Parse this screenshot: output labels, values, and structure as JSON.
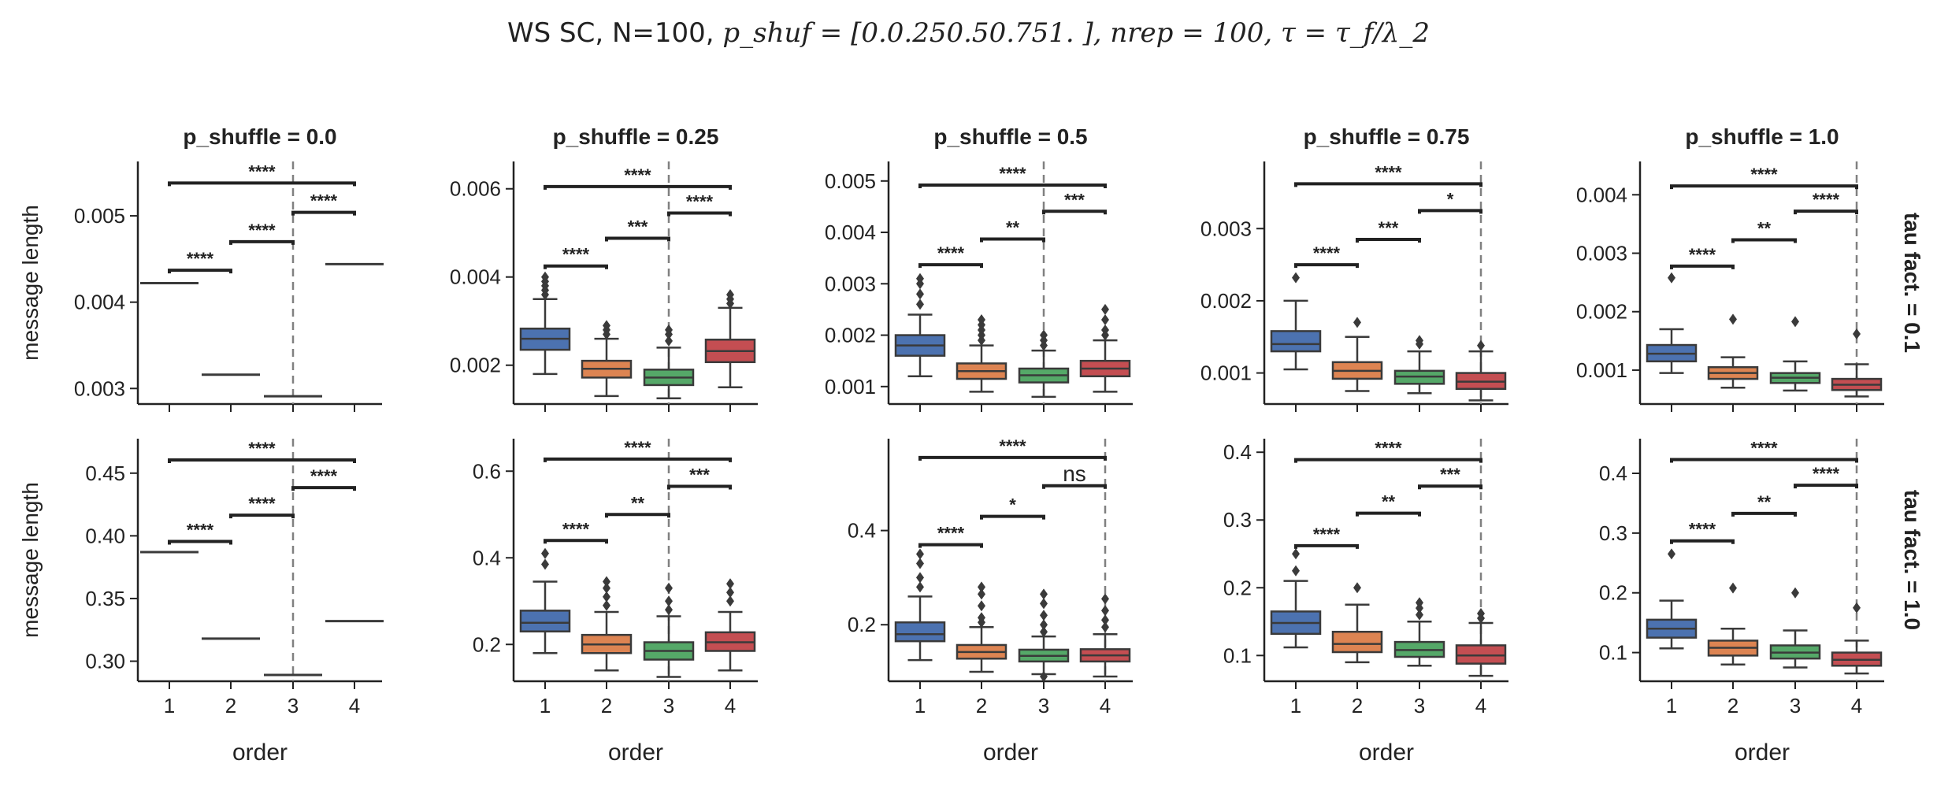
{
  "figure": {
    "suptitle_plain": "WS SC, N=100, ",
    "suptitle_rest": "p_shuf = [0.0.250.50.751. ], nrep = 100, τ = τ_f/λ_2",
    "row_labels": [
      "tau fact. = 0.1",
      "tau fact. = 1.0"
    ],
    "ylabel": "message length",
    "xlabel": "order"
  },
  "colors": {
    "order_1": "#4c72b0",
    "order_2": "#dd8452",
    "order_3": "#55a868",
    "order_4": "#c44e52",
    "ink": "#3a3a3a",
    "vline": "#808080"
  },
  "chart_data": [
    {
      "type": "box",
      "title": "p_shuffle = 0.0",
      "row": "tau fact. = 0.1",
      "categories": [
        "1",
        "2",
        "3",
        "4"
      ],
      "ylim": [
        0.00282,
        0.00563
      ],
      "yticks": [
        0.003,
        0.004,
        0.005
      ],
      "ytick_labels": [
        "0.003",
        "0.004",
        "0.005"
      ],
      "vline_x": "3",
      "boxes": [
        {
          "x": "1",
          "degenerate": 0.00422
        },
        {
          "x": "2",
          "degenerate": 0.00316
        },
        {
          "x": "3",
          "degenerate": 0.00291
        },
        {
          "x": "4",
          "degenerate": 0.00444
        }
      ],
      "annotations": [
        {
          "from": "1",
          "to": "2",
          "y": 0.00437,
          "label": "****"
        },
        {
          "from": "2",
          "to": "3",
          "y": 0.0047,
          "label": "****"
        },
        {
          "from": "3",
          "to": "4",
          "y": 0.00504,
          "label": "****"
        },
        {
          "from": "1",
          "to": "4",
          "y": 0.00538,
          "label": "****"
        }
      ]
    },
    {
      "type": "box",
      "title": "p_shuffle = 0.25",
      "row": "tau fact. = 0.1",
      "categories": [
        "1",
        "2",
        "3",
        "4"
      ],
      "ylim": [
        0.00112,
        0.00662
      ],
      "yticks": [
        0.002,
        0.004,
        0.006
      ],
      "ytick_labels": [
        "0.002",
        "0.004",
        "0.006"
      ],
      "vline_x": "3",
      "boxes": [
        {
          "x": "1",
          "wlo": 0.0018,
          "q1": 0.00235,
          "med": 0.0026,
          "q3": 0.00283,
          "whi": 0.0035,
          "fliers": [
            0.0036,
            0.0037,
            0.0038,
            0.0039,
            0.004
          ]
        },
        {
          "x": "2",
          "wlo": 0.0013,
          "q1": 0.00172,
          "med": 0.00192,
          "q3": 0.0021,
          "whi": 0.0026,
          "fliers": [
            0.0027,
            0.0028,
            0.0029
          ]
        },
        {
          "x": "3",
          "wlo": 0.00125,
          "q1": 0.00155,
          "med": 0.00172,
          "q3": 0.0019,
          "whi": 0.0024,
          "fliers": [
            0.00255,
            0.0027,
            0.0028
          ]
        },
        {
          "x": "4",
          "wlo": 0.0015,
          "q1": 0.00207,
          "med": 0.00232,
          "q3": 0.00258,
          "whi": 0.0033,
          "fliers": [
            0.0034,
            0.0035,
            0.0036
          ]
        }
      ],
      "annotations": [
        {
          "from": "1",
          "to": "2",
          "y": 0.00425,
          "label": "****"
        },
        {
          "from": "2",
          "to": "3",
          "y": 0.00488,
          "label": "***"
        },
        {
          "from": "3",
          "to": "4",
          "y": 0.00545,
          "label": "****"
        },
        {
          "from": "1",
          "to": "4",
          "y": 0.00605,
          "label": "****"
        }
      ]
    },
    {
      "type": "box",
      "title": "p_shuffle = 0.5",
      "row": "tau fact. = 0.1",
      "categories": [
        "1",
        "2",
        "3",
        "4"
      ],
      "ylim": [
        0.00066,
        0.00538
      ],
      "yticks": [
        0.001,
        0.002,
        0.003,
        0.004,
        0.005
      ],
      "ytick_labels": [
        "0.001",
        "0.002",
        "0.003",
        "0.004",
        "0.005"
      ],
      "vline_x": "3",
      "boxes": [
        {
          "x": "1",
          "wlo": 0.0012,
          "q1": 0.0016,
          "med": 0.0018,
          "q3": 0.002,
          "whi": 0.0024,
          "fliers": [
            0.0026,
            0.0028,
            0.003,
            0.0031
          ]
        },
        {
          "x": "2",
          "wlo": 0.0009,
          "q1": 0.00115,
          "med": 0.0013,
          "q3": 0.00145,
          "whi": 0.0018,
          "fliers": [
            0.0019,
            0.002,
            0.0021,
            0.0022,
            0.0023
          ]
        },
        {
          "x": "3",
          "wlo": 0.0008,
          "q1": 0.00108,
          "med": 0.00122,
          "q3": 0.00135,
          "whi": 0.0017,
          "fliers": [
            0.0018,
            0.0019,
            0.002
          ]
        },
        {
          "x": "4",
          "wlo": 0.0009,
          "q1": 0.0012,
          "med": 0.00135,
          "q3": 0.0015,
          "whi": 0.0019,
          "fliers": [
            0.002,
            0.0021,
            0.0023,
            0.0025
          ]
        }
      ],
      "annotations": [
        {
          "from": "1",
          "to": "2",
          "y": 0.00337,
          "label": "****"
        },
        {
          "from": "2",
          "to": "3",
          "y": 0.00387,
          "label": "**"
        },
        {
          "from": "3",
          "to": "4",
          "y": 0.00441,
          "label": "***"
        },
        {
          "from": "1",
          "to": "4",
          "y": 0.00492,
          "label": "****"
        }
      ]
    },
    {
      "type": "box",
      "title": "p_shuffle = 0.75",
      "row": "tau fact. = 0.1",
      "categories": [
        "1",
        "2",
        "3",
        "4"
      ],
      "ylim": [
        0.00057,
        0.00393
      ],
      "yticks": [
        0.001,
        0.002,
        0.003
      ],
      "ytick_labels": [
        "0.001",
        "0.002",
        "0.003"
      ],
      "vline_x": "4",
      "boxes": [
        {
          "x": "1",
          "wlo": 0.00105,
          "q1": 0.0013,
          "med": 0.0014,
          "q3": 0.00158,
          "whi": 0.002,
          "fliers": [
            0.00232
          ]
        },
        {
          "x": "2",
          "wlo": 0.00075,
          "q1": 0.00092,
          "med": 0.00103,
          "q3": 0.00115,
          "whi": 0.0015,
          "fliers": [
            0.0017
          ]
        },
        {
          "x": "3",
          "wlo": 0.00072,
          "q1": 0.00085,
          "med": 0.00095,
          "q3": 0.00103,
          "whi": 0.0013,
          "fliers": [
            0.0014,
            0.00145
          ]
        },
        {
          "x": "4",
          "wlo": 0.00062,
          "q1": 0.00078,
          "med": 0.00088,
          "q3": 0.001,
          "whi": 0.0013,
          "fliers": [
            0.00138
          ]
        }
      ],
      "annotations": [
        {
          "from": "1",
          "to": "2",
          "y": 0.0025,
          "label": "****"
        },
        {
          "from": "2",
          "to": "3",
          "y": 0.00285,
          "label": "***"
        },
        {
          "from": "3",
          "to": "4",
          "y": 0.00325,
          "label": "*"
        },
        {
          "from": "1",
          "to": "4",
          "y": 0.00362,
          "label": "****"
        }
      ]
    },
    {
      "type": "box",
      "title": "p_shuffle = 1.0",
      "row": "tau fact. = 0.1",
      "categories": [
        "1",
        "2",
        "3",
        "4"
      ],
      "ylim": [
        0.00042,
        0.00457
      ],
      "yticks": [
        0.001,
        0.002,
        0.003,
        0.004
      ],
      "ytick_labels": [
        "0.001",
        "0.002",
        "0.003",
        "0.004"
      ],
      "vline_x": "4",
      "boxes": [
        {
          "x": "1",
          "wlo": 0.00095,
          "q1": 0.00115,
          "med": 0.00128,
          "q3": 0.00143,
          "whi": 0.0017,
          "fliers": [
            0.00258
          ]
        },
        {
          "x": "2",
          "wlo": 0.0007,
          "q1": 0.00085,
          "med": 0.00095,
          "q3": 0.00105,
          "whi": 0.00122,
          "fliers": [
            0.00187
          ]
        },
        {
          "x": "3",
          "wlo": 0.00065,
          "q1": 0.00078,
          "med": 0.00087,
          "q3": 0.00095,
          "whi": 0.00115,
          "fliers": [
            0.00183
          ]
        },
        {
          "x": "4",
          "wlo": 0.00055,
          "q1": 0.00066,
          "med": 0.00075,
          "q3": 0.00085,
          "whi": 0.0011,
          "fliers": [
            0.00162
          ]
        }
      ],
      "annotations": [
        {
          "from": "1",
          "to": "2",
          "y": 0.00278,
          "label": "****"
        },
        {
          "from": "2",
          "to": "3",
          "y": 0.00323,
          "label": "**"
        },
        {
          "from": "3",
          "to": "4",
          "y": 0.00372,
          "label": "****"
        },
        {
          "from": "1",
          "to": "4",
          "y": 0.00415,
          "label": "****"
        }
      ]
    },
    {
      "type": "box",
      "title": "",
      "row": "tau fact. = 1.0",
      "categories": [
        "1",
        "2",
        "3",
        "4"
      ],
      "ylim": [
        0.284,
        0.4775
      ],
      "yticks": [
        0.3,
        0.35,
        0.4,
        0.45
      ],
      "ytick_labels": [
        "0.30",
        "0.35",
        "0.40",
        "0.45"
      ],
      "vline_x": "3",
      "boxes": [
        {
          "x": "1",
          "degenerate": 0.387
        },
        {
          "x": "2",
          "degenerate": 0.318
        },
        {
          "x": "3",
          "degenerate": 0.289
        },
        {
          "x": "4",
          "degenerate": 0.332
        }
      ],
      "annotations": [
        {
          "from": "1",
          "to": "2",
          "y": 0.3955,
          "label": "****"
        },
        {
          "from": "2",
          "to": "3",
          "y": 0.4165,
          "label": "****"
        },
        {
          "from": "3",
          "to": "4",
          "y": 0.4385,
          "label": "****"
        },
        {
          "from": "1",
          "to": "4",
          "y": 0.4605,
          "label": "****"
        }
      ]
    },
    {
      "type": "box",
      "title": "",
      "row": "tau fact. = 1.0",
      "categories": [
        "1",
        "2",
        "3",
        "4"
      ],
      "ylim": [
        0.115,
        0.675
      ],
      "yticks": [
        0.2,
        0.4,
        0.6
      ],
      "ytick_labels": [
        "0.2",
        "0.4",
        "0.6"
      ],
      "vline_x": "3",
      "boxes": [
        {
          "x": "1",
          "wlo": 0.18,
          "q1": 0.23,
          "med": 0.25,
          "q3": 0.278,
          "whi": 0.345,
          "fliers": [
            0.385,
            0.41
          ]
        },
        {
          "x": "2",
          "wlo": 0.14,
          "q1": 0.18,
          "med": 0.2,
          "q3": 0.222,
          "whi": 0.275,
          "fliers": [
            0.29,
            0.31,
            0.33,
            0.345
          ]
        },
        {
          "x": "3",
          "wlo": 0.125,
          "q1": 0.165,
          "med": 0.185,
          "q3": 0.205,
          "whi": 0.265,
          "fliers": [
            0.28,
            0.3,
            0.33
          ]
        },
        {
          "x": "4",
          "wlo": 0.14,
          "q1": 0.185,
          "med": 0.205,
          "q3": 0.228,
          "whi": 0.275,
          "fliers": [
            0.3,
            0.32,
            0.34
          ]
        }
      ],
      "annotations": [
        {
          "from": "1",
          "to": "2",
          "y": 0.44,
          "label": "****"
        },
        {
          "from": "2",
          "to": "3",
          "y": 0.5,
          "label": "**"
        },
        {
          "from": "3",
          "to": "4",
          "y": 0.565,
          "label": "***"
        },
        {
          "from": "1",
          "to": "4",
          "y": 0.628,
          "label": "****"
        }
      ]
    },
    {
      "type": "box",
      "title": "",
      "row": "tau fact. = 1.0",
      "categories": [
        "1",
        "2",
        "3",
        "4"
      ],
      "ylim": [
        0.08,
        0.595
      ],
      "yticks": [
        0.2,
        0.4
      ],
      "ytick_labels": [
        "0.2",
        "0.4"
      ],
      "vline_x": "4",
      "boxes": [
        {
          "x": "1",
          "wlo": 0.125,
          "q1": 0.165,
          "med": 0.18,
          "q3": 0.205,
          "whi": 0.26,
          "fliers": [
            0.28,
            0.3,
            0.33,
            0.35
          ]
        },
        {
          "x": "2",
          "wlo": 0.1,
          "q1": 0.128,
          "med": 0.142,
          "q3": 0.157,
          "whi": 0.195,
          "fliers": [
            0.205,
            0.215,
            0.24,
            0.265,
            0.28
          ]
        },
        {
          "x": "3",
          "wlo": 0.095,
          "q1": 0.122,
          "med": 0.134,
          "q3": 0.147,
          "whi": 0.175,
          "fliers": [
            0.09,
            0.185,
            0.2,
            0.22,
            0.245,
            0.265
          ]
        },
        {
          "x": "4",
          "wlo": 0.09,
          "q1": 0.122,
          "med": 0.135,
          "q3": 0.148,
          "whi": 0.18,
          "fliers": [
            0.195,
            0.21,
            0.23,
            0.255
          ]
        }
      ],
      "annotations": [
        {
          "from": "1",
          "to": "2",
          "y": 0.37,
          "label": "****"
        },
        {
          "from": "2",
          "to": "3",
          "y": 0.43,
          "label": "*"
        },
        {
          "from": "3",
          "to": "4",
          "y": 0.495,
          "label": "ns"
        },
        {
          "from": "1",
          "to": "4",
          "y": 0.555,
          "label": "****"
        }
      ]
    },
    {
      "type": "box",
      "title": "",
      "row": "tau fact. = 1.0",
      "categories": [
        "1",
        "2",
        "3",
        "4"
      ],
      "ylim": [
        0.062,
        0.42
      ],
      "yticks": [
        0.1,
        0.2,
        0.3,
        0.4
      ],
      "ytick_labels": [
        "0.1",
        "0.2",
        "0.3",
        "0.4"
      ],
      "vline_x": "4",
      "boxes": [
        {
          "x": "1",
          "wlo": 0.112,
          "q1": 0.132,
          "med": 0.148,
          "q3": 0.165,
          "whi": 0.21,
          "fliers": [
            0.225,
            0.25
          ]
        },
        {
          "x": "2",
          "wlo": 0.09,
          "q1": 0.105,
          "med": 0.117,
          "q3": 0.135,
          "whi": 0.175,
          "fliers": [
            0.2
          ]
        },
        {
          "x": "3",
          "wlo": 0.085,
          "q1": 0.098,
          "med": 0.108,
          "q3": 0.12,
          "whi": 0.15,
          "fliers": [
            0.16,
            0.17,
            0.178
          ]
        },
        {
          "x": "4",
          "wlo": 0.07,
          "q1": 0.088,
          "med": 0.1,
          "q3": 0.115,
          "whi": 0.148,
          "fliers": [
            0.155,
            0.162
          ]
        }
      ],
      "annotations": [
        {
          "from": "1",
          "to": "2",
          "y": 0.262,
          "label": "****"
        },
        {
          "from": "2",
          "to": "3",
          "y": 0.31,
          "label": "**"
        },
        {
          "from": "3",
          "to": "4",
          "y": 0.35,
          "label": "***"
        },
        {
          "from": "1",
          "to": "4",
          "y": 0.389,
          "label": "****"
        }
      ]
    },
    {
      "type": "box",
      "title": "",
      "row": "tau fact. = 1.0",
      "categories": [
        "1",
        "2",
        "3",
        "4"
      ],
      "ylim": [
        0.052,
        0.458
      ],
      "yticks": [
        0.1,
        0.2,
        0.3,
        0.4
      ],
      "ytick_labels": [
        "0.1",
        "0.2",
        "0.3",
        "0.4"
      ],
      "vline_x": "4",
      "boxes": [
        {
          "x": "1",
          "wlo": 0.107,
          "q1": 0.125,
          "med": 0.14,
          "q3": 0.155,
          "whi": 0.187,
          "fliers": [
            0.265
          ]
        },
        {
          "x": "2",
          "wlo": 0.08,
          "q1": 0.095,
          "med": 0.108,
          "q3": 0.12,
          "whi": 0.14,
          "fliers": [
            0.208
          ]
        },
        {
          "x": "3",
          "wlo": 0.075,
          "q1": 0.09,
          "med": 0.1,
          "q3": 0.112,
          "whi": 0.137,
          "fliers": [
            0.2
          ]
        },
        {
          "x": "4",
          "wlo": 0.065,
          "q1": 0.078,
          "med": 0.088,
          "q3": 0.1,
          "whi": 0.12,
          "fliers": [
            0.175
          ]
        }
      ],
      "annotations": [
        {
          "from": "1",
          "to": "2",
          "y": 0.287,
          "label": "****"
        },
        {
          "from": "2",
          "to": "3",
          "y": 0.333,
          "label": "**"
        },
        {
          "from": "3",
          "to": "4",
          "y": 0.38,
          "label": "****"
        },
        {
          "from": "1",
          "to": "4",
          "y": 0.423,
          "label": "****"
        }
      ]
    }
  ]
}
